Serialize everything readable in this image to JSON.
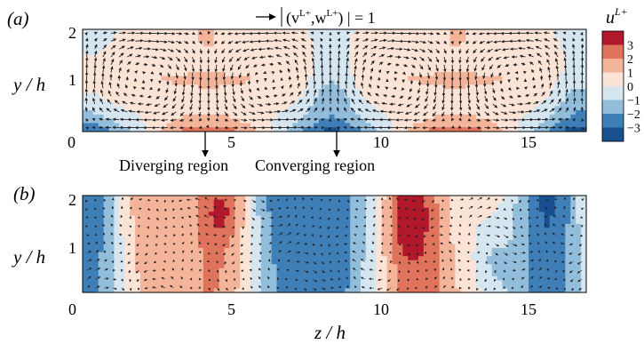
{
  "figure": {
    "panel_a_label": "(a)",
    "panel_b_label": "(b)",
    "legend_note_a": "(v",
    "legend_note_b": "L+",
    "legend_note_c": ",w",
    "legend_note_d": "L+",
    "legend_note_e": ") | = 1",
    "annotation_diverging": "Diverging region",
    "annotation_converging": "Converging region",
    "colorbar_title_base": "u",
    "colorbar_title_sup": "L+",
    "colorbar_ticks": [
      "3",
      "2",
      "1",
      "0",
      "−1",
      "−2",
      "−3"
    ],
    "colorbar_colors": [
      "#b2182b",
      "#e0735c",
      "#f4b49a",
      "#fbe3d6",
      "#d6e6f1",
      "#92bddb",
      "#3f7fb8",
      "#174f8f"
    ],
    "ylabel": "y / h",
    "xlabel": "z / h",
    "panel_a_yticks": [
      "2",
      "1",
      "0"
    ],
    "panel_a_xticks": [
      "5",
      "10",
      "15"
    ],
    "panel_b_yticks": [
      "2",
      "1"
    ],
    "panel_b_xticks": [
      "0",
      "5",
      "10",
      "15"
    ]
  },
  "chart_data": [
    {
      "type": "heatmap",
      "panel": "(a)",
      "xlabel": "",
      "ylabel": "y / h",
      "xlim": [
        0,
        17
      ],
      "ylim": [
        0,
        2
      ],
      "x_ticks": [
        0,
        5,
        10,
        15
      ],
      "y_ticks": [
        0,
        1,
        2
      ],
      "colorbar": {
        "label": "u^{L+}",
        "ticks": [
          3,
          2,
          1,
          0,
          -1,
          -2,
          -3
        ]
      },
      "vector_scale_reference": "|(v^{L+}, w^{L+})| = 1",
      "annotations": [
        {
          "text": "Diverging region",
          "z": 4.2
        },
        {
          "text": "Converging region",
          "z": 8.4
        }
      ]
    },
    {
      "type": "heatmap",
      "panel": "(b)",
      "xlabel": "z / h",
      "ylabel": "y / h",
      "xlim": [
        0,
        17
      ],
      "ylim": [
        0,
        2
      ],
      "x_ticks": [
        0,
        5,
        10,
        15
      ],
      "y_ticks": [
        1,
        2
      ]
    }
  ]
}
